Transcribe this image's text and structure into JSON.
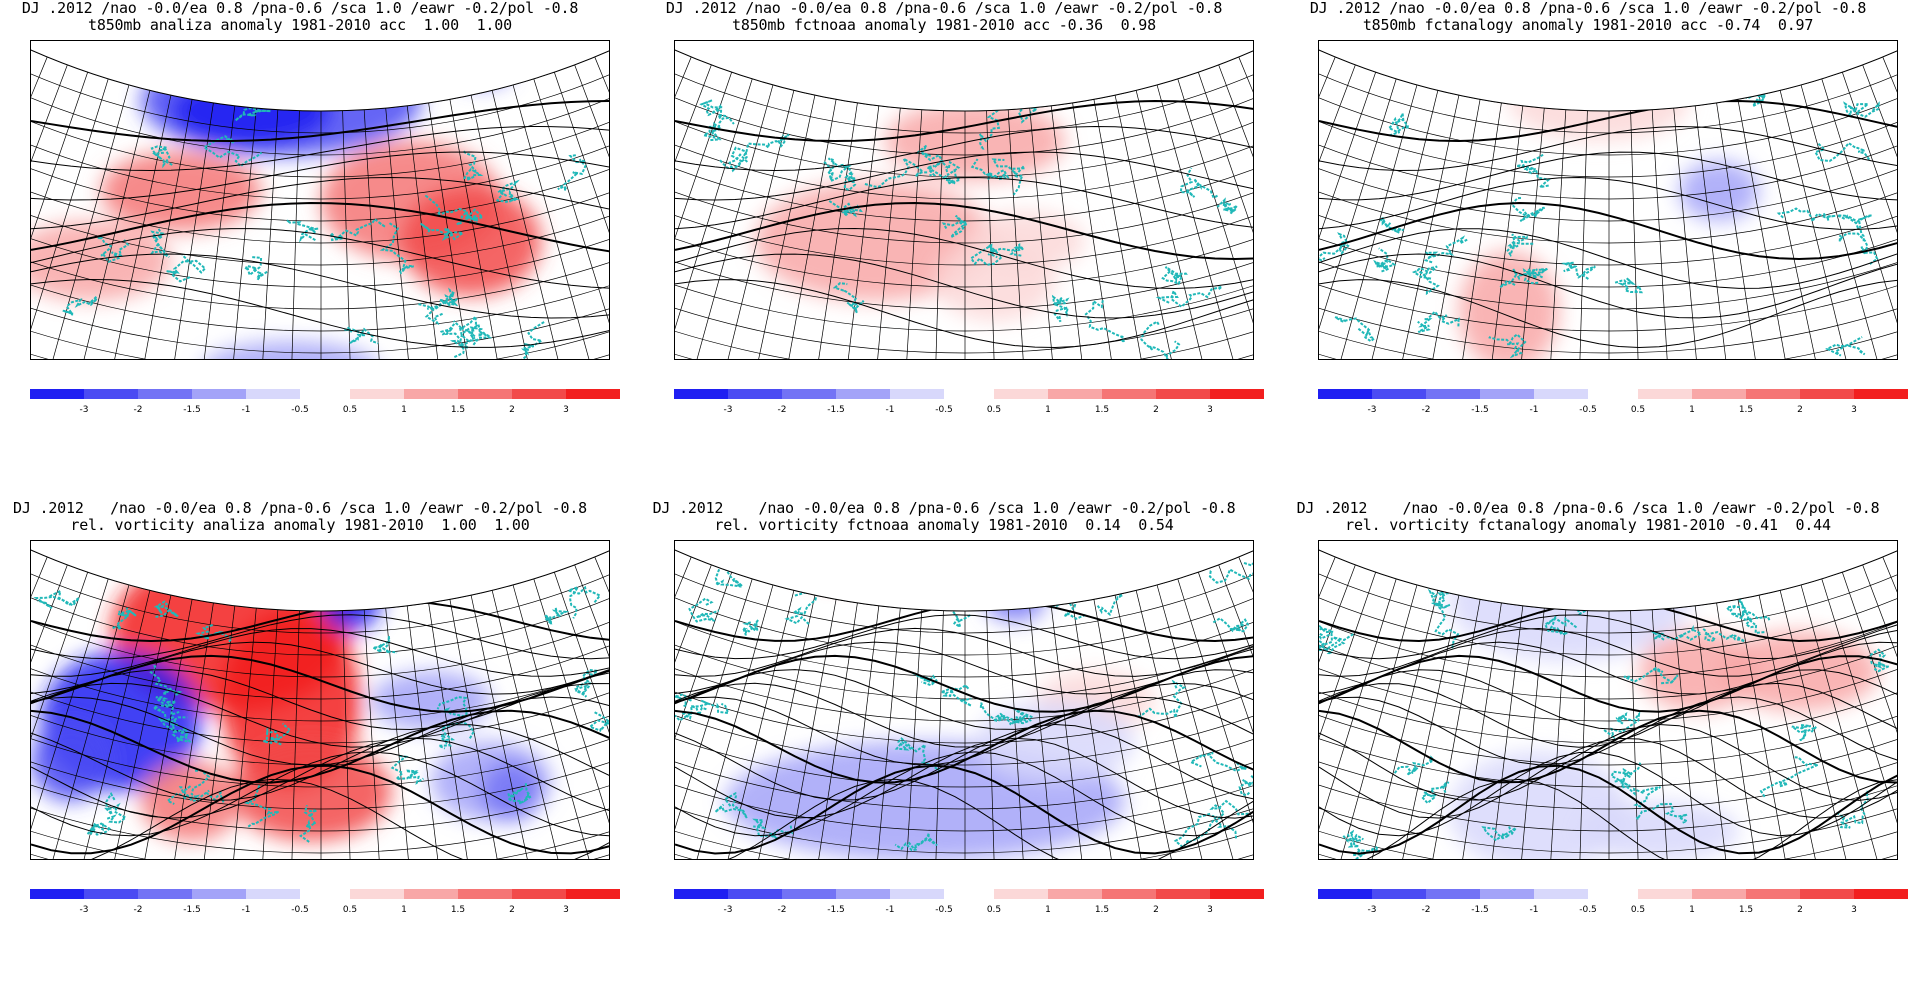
{
  "panels": [
    {
      "line1": "DJ .2012 /nao -0.0/ea 0.8 /pna-0.6 /sca 1.0 /eawr -0.2/pol -0.8",
      "line2": "t850mb analiza anomaly 1981-2010 acc  1.00  1.00"
    },
    {
      "line1": "DJ .2012 /nao -0.0/ea 0.8 /pna-0.6 /sca 1.0 /eawr -0.2/pol -0.8",
      "line2": "t850mb fctnoaa anomaly 1981-2010 acc -0.36  0.98"
    },
    {
      "line1": "DJ .2012 /nao -0.0/ea 0.8 /pna-0.6 /sca 1.0 /eawr -0.2/pol -0.8",
      "line2": "t850mb fctanalogy anomaly 1981-2010 acc -0.74  0.97"
    },
    {
      "line1": "DJ .2012   /nao -0.0/ea 0.8 /pna-0.6 /sca 1.0 /eawr -0.2/pol -0.8",
      "line2": "rel. vorticity analiza anomaly 1981-2010  1.00  1.00"
    },
    {
      "line1": "DJ .2012    /nao -0.0/ea 0.8 /pna-0.6 /sca 1.0 /eawr -0.2/pol -0.8",
      "line2": "rel. vorticity fctnoaa anomaly 1981-2010  0.14  0.54"
    },
    {
      "line1": "DJ .2012    /nao -0.0/ea 0.8 /pna-0.6 /sca 1.0 /eawr -0.2/pol -0.8",
      "line2": "rel. vorticity fctanalogy anomaly 1981-2010 -0.41  0.44"
    }
  ],
  "colorbar": {
    "neg_labels": [
      "-3",
      "-2",
      "-1.5",
      "-1",
      "-0.5"
    ],
    "pos_labels": [
      "0.5",
      "1",
      "1.5",
      "2",
      "3"
    ],
    "neg_colors": [
      "#1f1ff2",
      "#4b4bf3",
      "#7373f5",
      "#a3a3f8",
      "#d8d8fb"
    ],
    "pos_colors": [
      "#fbd8d8",
      "#f8a7a7",
      "#f57575",
      "#f24a4a",
      "#f21f1f"
    ]
  },
  "colors": {
    "coast": "#20b8b8",
    "contour": "#000000",
    "grid": "#000000"
  }
}
